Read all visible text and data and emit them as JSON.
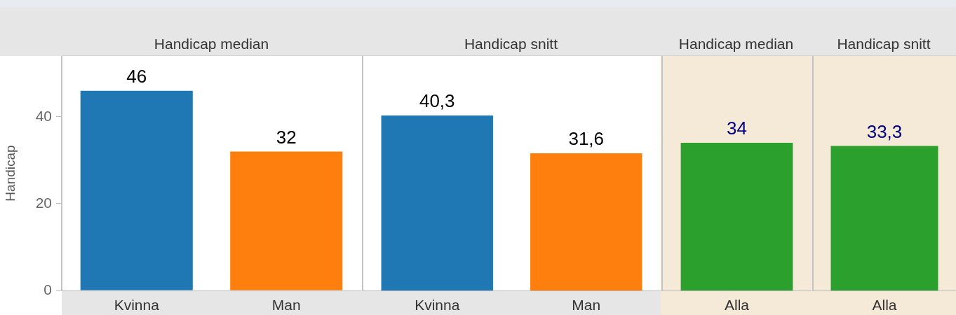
{
  "chart_data": [
    {
      "type": "bar",
      "title": "Handicap median",
      "ylabel": "Handicap",
      "categories": [
        "Kvinna",
        "Man"
      ],
      "values": [
        46,
        32
      ],
      "colors": [
        "#1f77b4",
        "#ff7f0e"
      ],
      "value_labels": [
        "46",
        "32"
      ],
      "ylim": [
        0,
        54
      ],
      "yticks": [
        0,
        20,
        40
      ]
    },
    {
      "type": "bar",
      "title": "Handicap snitt",
      "categories": [
        "Kvinna",
        "Man"
      ],
      "values": [
        40.3,
        31.6
      ],
      "colors": [
        "#1f77b4",
        "#ff7f0e"
      ],
      "value_labels": [
        "40,3",
        "31,6"
      ],
      "ylim": [
        0,
        54
      ],
      "tick_labels": "x"
    },
    {
      "type": "bar",
      "title": "Handicap median",
      "categories": [
        "Alla"
      ],
      "values": [
        34
      ],
      "colors": [
        "#2ca02c"
      ],
      "value_labels": [
        "34"
      ],
      "ylim": [
        0,
        54
      ],
      "tick_labels": "x"
    },
    {
      "type": "bar",
      "title": "Handicap snitt",
      "categories": [
        "Alla"
      ],
      "values": [
        33.3
      ],
      "colors": [
        "#2ca02c"
      ],
      "value_labels": [
        "33,3"
      ],
      "ylim": [
        0,
        54
      ],
      "tick_labels": "x"
    }
  ]
}
